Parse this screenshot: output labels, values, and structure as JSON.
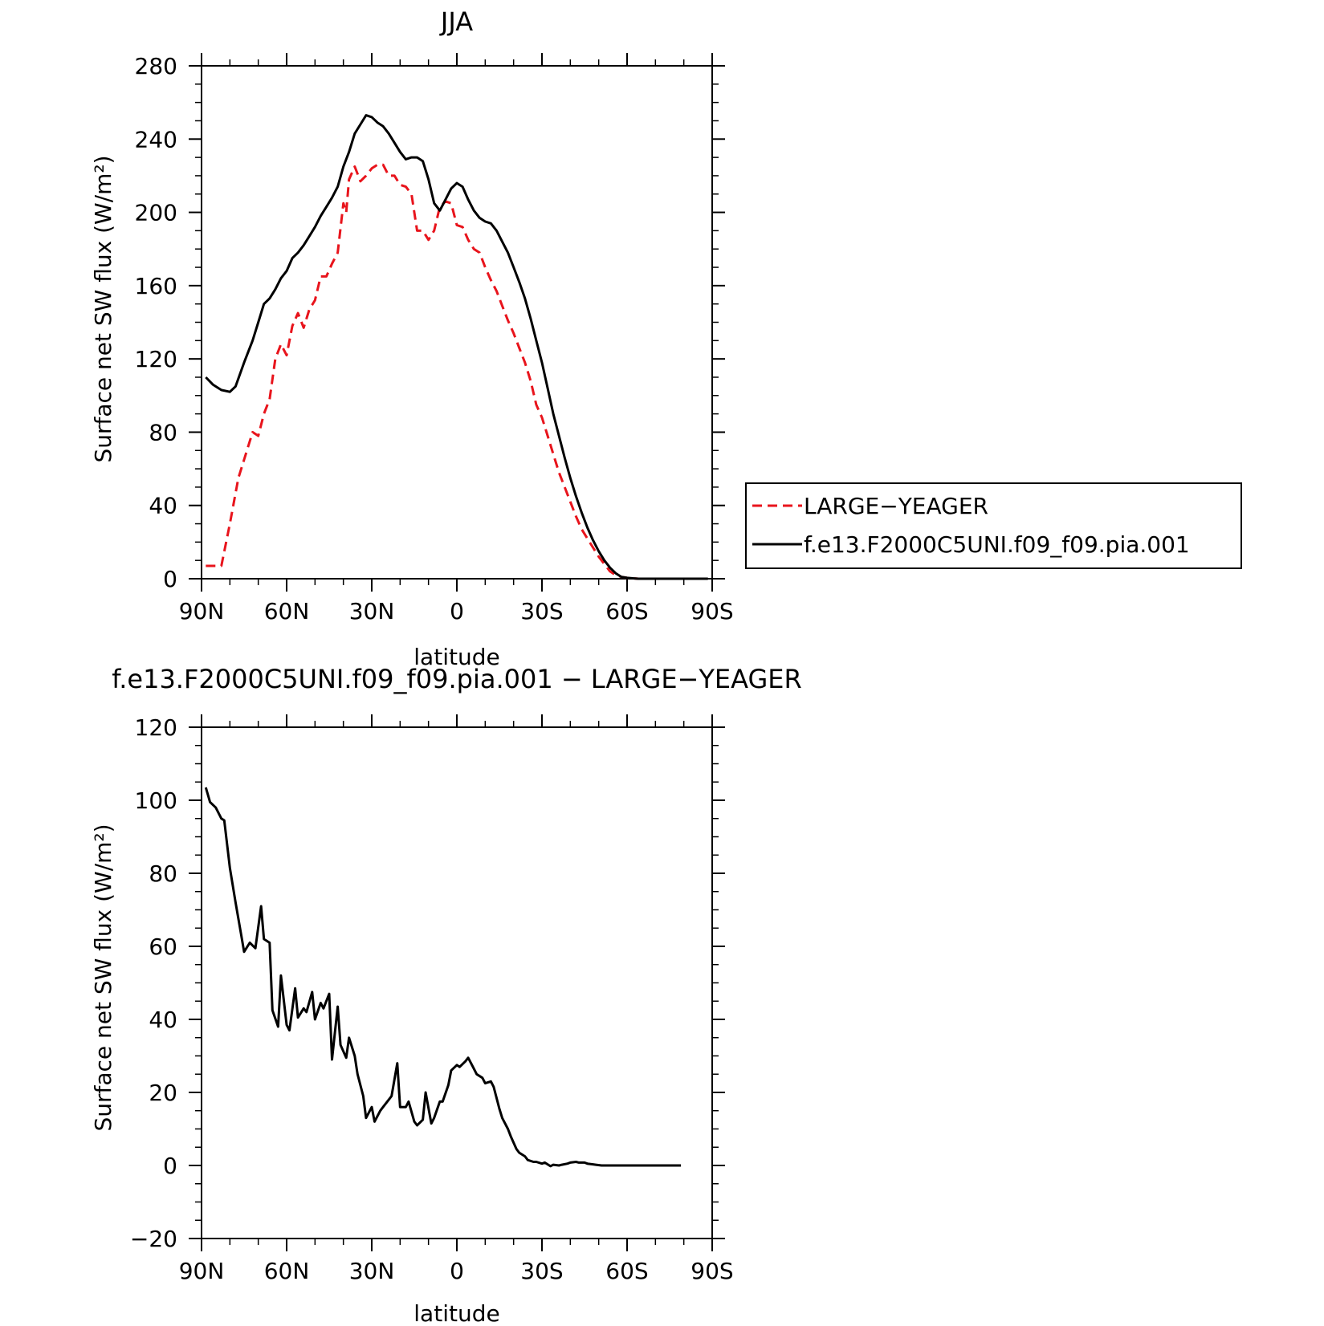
{
  "chart_data": [
    {
      "type": "line",
      "title": "JJA",
      "xlabel": "latitude",
      "ylabel": "Surface net SW flux (W/m²)",
      "x_direction": "north-to-south",
      "xlim": [
        90,
        -90
      ],
      "ylim": [
        0,
        280
      ],
      "x_ticks": [
        90,
        60,
        30,
        0,
        -30,
        -60,
        -90
      ],
      "x_tick_labels": [
        "90N",
        "60N",
        "30N",
        "0",
        "30S",
        "60S",
        "90S"
      ],
      "y_ticks": [
        0,
        40,
        80,
        120,
        160,
        200,
        240,
        280
      ],
      "y_tick_labels": [
        "0",
        "40",
        "80",
        "120",
        "160",
        "200",
        "240",
        "280"
      ],
      "grid": false,
      "legend": {
        "position": "right",
        "entries": [
          "LARGE−YEAGER",
          "f.e13.F2000C5UNI.f09_f09.pia.001"
        ]
      },
      "series": [
        {
          "name": "LARGE−YEAGER",
          "color": "#e8141c",
          "dash": "dashed",
          "x": [
            88.5,
            85,
            83,
            80,
            77,
            75,
            72,
            70,
            68,
            66,
            64,
            62,
            60,
            58,
            56,
            54,
            52,
            50,
            48,
            46,
            44,
            42,
            40,
            39,
            38,
            36,
            34,
            32,
            30,
            28,
            26,
            24,
            22,
            20,
            18,
            16,
            14,
            12,
            10,
            8,
            6,
            4,
            2,
            0,
            -2,
            -4,
            -6,
            -8,
            -10,
            -12,
            -14,
            -16,
            -18,
            -20,
            -22,
            -24,
            -26,
            -28,
            -30,
            -32,
            -34,
            -36,
            -38,
            -40,
            -42,
            -44,
            -46,
            -48,
            -50,
            -52,
            -54,
            -56,
            -58,
            -60,
            -62,
            -64,
            -66,
            -68,
            -70,
            -72,
            -75,
            -78,
            -80,
            -85,
            -88.5
          ],
          "y": [
            7,
            7,
            7,
            30,
            55,
            65,
            80,
            78,
            90,
            98,
            120,
            128,
            122,
            138,
            145,
            137,
            147,
            152,
            165,
            165,
            172,
            178,
            205,
            200,
            218,
            225,
            217,
            220,
            224,
            226,
            226,
            220,
            220,
            215,
            214,
            210,
            190,
            190,
            185,
            190,
            203,
            206,
            205,
            193,
            192,
            185,
            180,
            178,
            170,
            163,
            157,
            149,
            141,
            134,
            126,
            118,
            108,
            95,
            88,
            78,
            68,
            58,
            50,
            42,
            34,
            27,
            22,
            17,
            12,
            8,
            4,
            2,
            1,
            0.5,
            0.2,
            0,
            0,
            0,
            0,
            0,
            0,
            0,
            0,
            0,
            0
          ]
        },
        {
          "name": "f.e13.F2000C5UNI.f09_f09.pia.001",
          "color": "#000000",
          "dash": "solid",
          "x": [
            88.5,
            86,
            83,
            80,
            78,
            75,
            72,
            70,
            68,
            66,
            64,
            62,
            60,
            58,
            56,
            54,
            52,
            50,
            48,
            46,
            44,
            42,
            40,
            38,
            36,
            34,
            32,
            30,
            28,
            26,
            24,
            22,
            20,
            18,
            16,
            14,
            12,
            10,
            8,
            6,
            4,
            2,
            0,
            -2,
            -4,
            -6,
            -8,
            -10,
            -12,
            -14,
            -16,
            -18,
            -20,
            -22,
            -24,
            -26,
            -28,
            -30,
            -32,
            -34,
            -36,
            -38,
            -40,
            -42,
            -44,
            -46,
            -48,
            -50,
            -52,
            -54,
            -56,
            -58,
            -60,
            -62,
            -64,
            -66,
            -68,
            -70,
            -72,
            -75,
            -78,
            -80,
            -85,
            -88.5
          ],
          "y": [
            110,
            106,
            103,
            102,
            105,
            118,
            130,
            140,
            150,
            153,
            158,
            164,
            168,
            175,
            178,
            182,
            187,
            192,
            198,
            203,
            208,
            214,
            225,
            233,
            243,
            248,
            253,
            252,
            249,
            247,
            243,
            238,
            233,
            229,
            230,
            230,
            228,
            218,
            205,
            201,
            207,
            213,
            216,
            214,
            207,
            201,
            197,
            195,
            194,
            190,
            184,
            178,
            170,
            162,
            153,
            142,
            130,
            118,
            104,
            90,
            78,
            66,
            55,
            45,
            36,
            28,
            21,
            15,
            10,
            6,
            3,
            1,
            0.5,
            0.2,
            0,
            0,
            0,
            0,
            0,
            0,
            0,
            0,
            0,
            0
          ]
        }
      ]
    },
    {
      "type": "line",
      "title": "f.e13.F2000C5UNI.f09_f09.pia.001 − LARGE−YEAGER",
      "xlabel": "latitude",
      "ylabel": "Surface net SW flux (W/m²)",
      "x_direction": "north-to-south",
      "xlim": [
        90,
        -90
      ],
      "ylim": [
        -20,
        120
      ],
      "x_ticks": [
        90,
        60,
        30,
        0,
        -30,
        -60,
        -90
      ],
      "x_tick_labels": [
        "90N",
        "60N",
        "30N",
        "0",
        "30S",
        "60S",
        "90S"
      ],
      "y_ticks": [
        -20,
        0,
        20,
        40,
        60,
        80,
        100,
        120
      ],
      "y_tick_labels": [
        "−20",
        "0",
        "20",
        "40",
        "60",
        "80",
        "100",
        "120"
      ],
      "grid": false,
      "series": [
        {
          "color": "#000000",
          "dash": "solid",
          "x": [
            88.5,
            87,
            85,
            83,
            82,
            80,
            78,
            76,
            75,
            73,
            71,
            69,
            68,
            66,
            65,
            63,
            62,
            60,
            59,
            57,
            56,
            54,
            53,
            51,
            50,
            48,
            47,
            45,
            44,
            42,
            41,
            39,
            38,
            36,
            35,
            33,
            32,
            30,
            29,
            27,
            26,
            24,
            23,
            21,
            20,
            18,
            17,
            15,
            14,
            12,
            11,
            9,
            8,
            6,
            5,
            3,
            2,
            0,
            -1,
            -3,
            -4,
            -6,
            -7,
            -9,
            -10,
            -12,
            -13,
            -15,
            -16,
            -18,
            -19,
            -21,
            -22,
            -24,
            -25,
            -27,
            -28,
            -30,
            -31,
            -33,
            -34,
            -36,
            -37,
            -39,
            -40,
            -42,
            -43,
            -45,
            -46,
            -48,
            -49,
            -51,
            -52,
            -54,
            -55,
            -57,
            -58,
            -60,
            -61,
            -63,
            -64,
            -66,
            -67,
            -69,
            -70,
            -72,
            -73,
            -75,
            -76,
            -78,
            -79
          ],
          "y": [
            103.5,
            99.5,
            98,
            95,
            94.5,
            81.5,
            72,
            63,
            58.5,
            61,
            59.5,
            71,
            62,
            61,
            42.5,
            38,
            52,
            38.5,
            37,
            48.5,
            40.5,
            43,
            42,
            47.5,
            40,
            44.5,
            43,
            47,
            29,
            43.5,
            33,
            29.5,
            35,
            30,
            25,
            19,
            13,
            16,
            12,
            15,
            16,
            18,
            19,
            28,
            16,
            16,
            17.5,
            12,
            11,
            12.5,
            20,
            11.5,
            13,
            17.5,
            17.5,
            22,
            26,
            27.5,
            27,
            28.5,
            29.5,
            26.5,
            25,
            24,
            22.5,
            23,
            21.5,
            15.5,
            13,
            10,
            8,
            4.5,
            3.5,
            2.5,
            1.5,
            1,
            1,
            0.5,
            0.8,
            -0.2,
            0.2,
            0,
            0.2,
            0.5,
            0.8,
            1,
            0.8,
            0.8,
            0.5,
            0.3,
            0.2,
            0,
            0,
            0,
            0,
            0,
            0,
            0,
            0,
            0,
            0,
            0,
            0,
            0,
            0,
            0,
            0,
            0,
            0,
            0,
            0
          ]
        }
      ]
    }
  ]
}
